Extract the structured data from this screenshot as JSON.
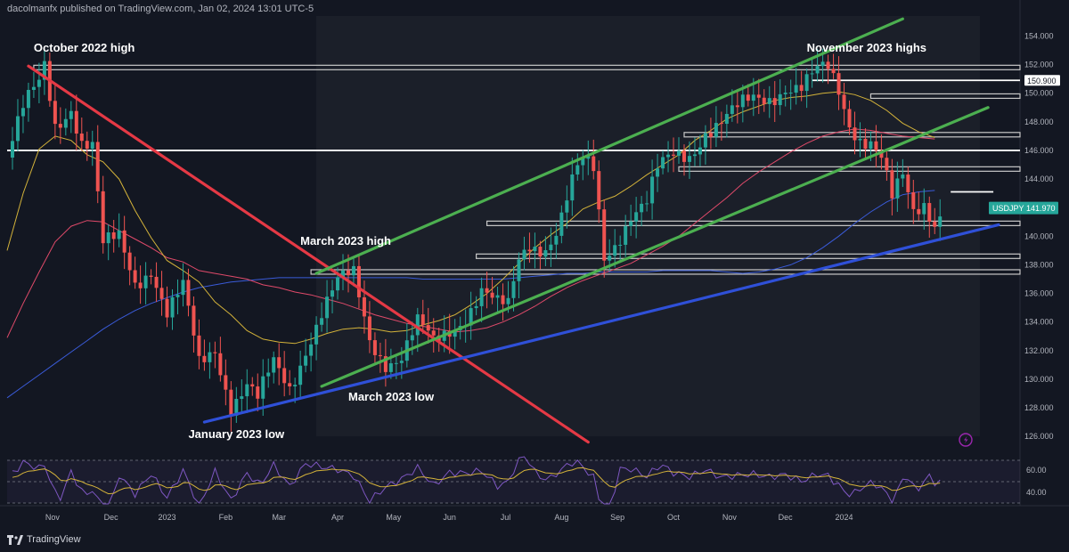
{
  "header": {
    "text": "dacolmanfx published on TradingView.com, Jan 02, 2024 13:01 UTC-5"
  },
  "brand": {
    "text": "TradingView",
    "icon": "tradingview-logo-icon"
  },
  "chart_data": {
    "type": "candlestick",
    "symbol": "USDJPY",
    "last_price": "141.970",
    "y_ticks": [
      "154.000",
      "152.000",
      "150.000",
      "148.000",
      "146.000",
      "144.000",
      "142.000",
      "140.000",
      "138.000",
      "136.000",
      "134.000",
      "132.000",
      "130.000",
      "128.000",
      "126.000"
    ],
    "ylim": [
      125.2,
      155.4
    ],
    "x_ticks": [
      "Nov",
      "Dec",
      "2023",
      "Feb",
      "Mar",
      "Apr",
      "May",
      "Jun",
      "Jul",
      "Aug",
      "Sep",
      "Oct",
      "Nov",
      "Dec",
      "2024"
    ],
    "rsi_ticks": [
      "60.00",
      "40.00"
    ],
    "price_labels": [
      {
        "text": "150.900",
        "value": 150.9
      }
    ],
    "price_path": [
      [
        0,
        145.5
      ],
      [
        3,
        148.6
      ],
      [
        6,
        150.6
      ],
      [
        7,
        151.9
      ],
      [
        9,
        148
      ],
      [
        12,
        149.3
      ],
      [
        14,
        146.6
      ],
      [
        16,
        146.1
      ],
      [
        18,
        139
      ],
      [
        21,
        139.8
      ],
      [
        24,
        137
      ],
      [
        27,
        138
      ],
      [
        30,
        134.5
      ],
      [
        33,
        136.1
      ],
      [
        36,
        131
      ],
      [
        39,
        132.4
      ],
      [
        42,
        128.4
      ],
      [
        45,
        129.5
      ],
      [
        47,
        128.3
      ],
      [
        50,
        130.9
      ],
      [
        53,
        129.5
      ],
      [
        56,
        132.4
      ],
      [
        59,
        134.7
      ],
      [
        62,
        136.5
      ],
      [
        65,
        137.1
      ],
      [
        68,
        133
      ],
      [
        71,
        131.5
      ],
      [
        74,
        131.5
      ],
      [
        77,
        133.6
      ],
      [
        80,
        132.4
      ],
      [
        83,
        133.6
      ],
      [
        86,
        134.7
      ],
      [
        89,
        136.2
      ],
      [
        92,
        134.9
      ],
      [
        94,
        134.8
      ],
      [
        96,
        138.3
      ],
      [
        98,
        139.7
      ],
      [
        100,
        139.5
      ],
      [
        102,
        139.8
      ],
      [
        104,
        141.3
      ],
      [
        106,
        143.6
      ],
      [
        108,
        144.9
      ],
      [
        110,
        144.5
      ],
      [
        112,
        138.6
      ],
      [
        114,
        139.8
      ],
      [
        117,
        141.7
      ],
      [
        120,
        142.2
      ],
      [
        122,
        144.3
      ],
      [
        125,
        145.5
      ],
      [
        128,
        145.9
      ],
      [
        131,
        147.6
      ],
      [
        134,
        147.9
      ],
      [
        137,
        148.6
      ],
      [
        140,
        149.5
      ],
      [
        143,
        149.9
      ],
      [
        146,
        150.7
      ],
      [
        149,
        150.3
      ],
      [
        152,
        151.2
      ],
      [
        154,
        151.5
      ],
      [
        156,
        150.2
      ],
      [
        158,
        148.1
      ],
      [
        160,
        147.2
      ],
      [
        162,
        146.8
      ],
      [
        164,
        145.4
      ],
      [
        166,
        142.3
      ],
      [
        168,
        143.8
      ],
      [
        170,
        141.5
      ],
      [
        172,
        142.4
      ],
      [
        174,
        141.3
      ],
      [
        175,
        141.97
      ]
    ],
    "ma_50": [
      [
        0,
        139
      ],
      [
        3,
        143
      ],
      [
        6,
        146.1
      ],
      [
        9,
        147
      ],
      [
        12,
        146.7
      ],
      [
        15,
        145.7
      ],
      [
        18,
        145.2
      ],
      [
        21,
        144
      ],
      [
        24,
        141.8
      ],
      [
        27,
        139.9
      ],
      [
        30,
        138.3
      ],
      [
        33,
        137.6
      ],
      [
        36,
        136.8
      ],
      [
        39,
        135.4
      ],
      [
        42,
        134.5
      ],
      [
        45,
        133.4
      ],
      [
        48,
        132.8
      ],
      [
        51,
        132.6
      ],
      [
        54,
        132.5
      ],
      [
        57,
        132.8
      ],
      [
        60,
        133.2
      ],
      [
        63,
        133.5
      ],
      [
        66,
        133.6
      ],
      [
        69,
        133.5
      ],
      [
        72,
        133.3
      ],
      [
        75,
        133.4
      ],
      [
        78,
        133.8
      ],
      [
        81,
        134.1
      ],
      [
        84,
        134.5
      ],
      [
        87,
        135.2
      ],
      [
        90,
        136
      ],
      [
        93,
        137
      ],
      [
        96,
        138.1
      ],
      [
        99,
        139.2
      ],
      [
        102,
        140.1
      ],
      [
        105,
        140.9
      ],
      [
        108,
        141.9
      ],
      [
        111,
        142.4
      ],
      [
        114,
        142.8
      ],
      [
        117,
        143.5
      ],
      [
        120,
        144.3
      ],
      [
        123,
        145
      ],
      [
        126,
        145.7
      ],
      [
        129,
        146.7
      ],
      [
        132,
        147.4
      ],
      [
        135,
        148.2
      ],
      [
        138,
        148.7
      ],
      [
        141,
        149.1
      ],
      [
        144,
        149.5
      ],
      [
        147,
        149.7
      ],
      [
        150,
        149.8
      ],
      [
        153,
        150
      ],
      [
        156,
        150.1
      ],
      [
        159,
        149.9
      ],
      [
        162,
        149.5
      ],
      [
        165,
        148.8
      ],
      [
        168,
        147.9
      ],
      [
        171,
        147.3
      ],
      [
        174,
        146.9
      ]
    ],
    "ma_100": [
      [
        0,
        132.9
      ],
      [
        3,
        135.3
      ],
      [
        6,
        137.5
      ],
      [
        9,
        139.6
      ],
      [
        12,
        140.7
      ],
      [
        15,
        141.1
      ],
      [
        18,
        141
      ],
      [
        21,
        140.4
      ],
      [
        24,
        139.8
      ],
      [
        27,
        139.2
      ],
      [
        30,
        138.5
      ],
      [
        33,
        138.2
      ],
      [
        36,
        137.6
      ],
      [
        39,
        137.4
      ],
      [
        42,
        137.2
      ],
      [
        45,
        137
      ],
      [
        48,
        136.6
      ],
      [
        51,
        136.4
      ],
      [
        54,
        136.1
      ],
      [
        57,
        135.9
      ],
      [
        60,
        135.6
      ],
      [
        63,
        135.3
      ],
      [
        66,
        134.9
      ],
      [
        69,
        134.5
      ],
      [
        72,
        134.2
      ],
      [
        75,
        133.9
      ],
      [
        78,
        133.7
      ],
      [
        81,
        133.5
      ],
      [
        84,
        133.3
      ],
      [
        87,
        133.4
      ],
      [
        90,
        133.6
      ],
      [
        93,
        134
      ],
      [
        96,
        134.5
      ],
      [
        99,
        135.1
      ],
      [
        102,
        135.8
      ],
      [
        105,
        136.4
      ],
      [
        108,
        136.9
      ],
      [
        111,
        137.3
      ],
      [
        114,
        137.7
      ],
      [
        117,
        138.1
      ],
      [
        120,
        138.7
      ],
      [
        123,
        139.3
      ],
      [
        126,
        140
      ],
      [
        129,
        140.9
      ],
      [
        132,
        141.8
      ],
      [
        135,
        142.7
      ],
      [
        138,
        143.7
      ],
      [
        141,
        144.5
      ],
      [
        144,
        145.2
      ],
      [
        147,
        145.9
      ],
      [
        150,
        146.5
      ],
      [
        153,
        147
      ],
      [
        156,
        147.3
      ],
      [
        159,
        147.5
      ],
      [
        162,
        147.4
      ],
      [
        165,
        147.2
      ],
      [
        168,
        147
      ],
      [
        171,
        146.9
      ],
      [
        174,
        146.8
      ]
    ],
    "ma_200": [
      [
        0,
        128.7
      ],
      [
        3,
        129.5
      ],
      [
        6,
        130.3
      ],
      [
        9,
        131.1
      ],
      [
        12,
        131.9
      ],
      [
        15,
        132.7
      ],
      [
        18,
        133.5
      ],
      [
        21,
        134.2
      ],
      [
        24,
        134.8
      ],
      [
        27,
        135.3
      ],
      [
        30,
        135.7
      ],
      [
        33,
        136.1
      ],
      [
        36,
        136.4
      ],
      [
        39,
        136.6
      ],
      [
        42,
        136.8
      ],
      [
        45,
        136.9
      ],
      [
        48,
        137
      ],
      [
        51,
        137.1
      ],
      [
        54,
        137.1
      ],
      [
        57,
        137.1
      ],
      [
        60,
        137.1
      ],
      [
        63,
        137.1
      ],
      [
        66,
        137.1
      ],
      [
        69,
        137.1
      ],
      [
        72,
        137.1
      ],
      [
        75,
        137.1
      ],
      [
        78,
        137
      ],
      [
        81,
        137
      ],
      [
        84,
        137
      ],
      [
        87,
        137
      ],
      [
        90,
        137
      ],
      [
        93,
        137
      ],
      [
        96,
        137.1
      ],
      [
        99,
        137.2
      ],
      [
        102,
        137.3
      ],
      [
        105,
        137.4
      ],
      [
        108,
        137.4
      ],
      [
        111,
        137.5
      ],
      [
        114,
        137.5
      ],
      [
        117,
        137.5
      ],
      [
        120,
        137.5
      ],
      [
        123,
        137.6
      ],
      [
        126,
        137.6
      ],
      [
        129,
        137.6
      ],
      [
        132,
        137.6
      ],
      [
        135,
        137.5
      ],
      [
        138,
        137.4
      ],
      [
        141,
        137.5
      ],
      [
        144,
        137.7
      ],
      [
        147,
        138
      ],
      [
        150,
        138.5
      ],
      [
        153,
        139.2
      ],
      [
        156,
        140
      ],
      [
        159,
        140.9
      ],
      [
        162,
        141.7
      ],
      [
        165,
        142.4
      ],
      [
        168,
        142.9
      ],
      [
        171,
        143.1
      ],
      [
        174,
        143.2
      ]
    ],
    "trendlines": [
      {
        "name": "descending",
        "color": "#e53945",
        "from": [
          4,
          151.9
        ],
        "to": [
          109,
          125.6
        ]
      },
      {
        "name": "ascending-support",
        "color": "#2f50d8",
        "from": [
          37,
          127
        ],
        "to": [
          186,
          140.8
        ]
      },
      {
        "name": "channel-upper",
        "color": "#4caf50",
        "from": [
          58,
          137.4
        ],
        "to": [
          168,
          155.2
        ]
      },
      {
        "name": "channel-lower",
        "color": "#4caf50",
        "from": [
          59,
          129.5
        ],
        "to": [
          184,
          149
        ]
      }
    ],
    "horizontal_lines": [
      {
        "y": 146.0,
        "from": 0,
        "to": 190,
        "style": "solid"
      },
      {
        "y": 150.9,
        "from": 151,
        "to": 190,
        "style": "solid"
      },
      {
        "y": 143.1,
        "from": 177,
        "to": 185,
        "style": "solid"
      },
      {
        "y": 151.8,
        "from": 5,
        "to": 190,
        "style": "band"
      },
      {
        "y": 149.8,
        "from": 162,
        "to": 190,
        "style": "band"
      },
      {
        "y": 147.1,
        "from": 127,
        "to": 190,
        "style": "band"
      },
      {
        "y": 144.7,
        "from": 126,
        "to": 190,
        "style": "band"
      },
      {
        "y": 140.9,
        "from": 90,
        "to": 190,
        "style": "band"
      },
      {
        "y": 138.6,
        "from": 88,
        "to": 190,
        "style": "band"
      },
      {
        "y": 137.5,
        "from": 57,
        "to": 190,
        "style": "band"
      }
    ],
    "annotations": [
      {
        "text": "October 2022 high",
        "x": 5,
        "y": 152.9
      },
      {
        "text": "November 2023 highs",
        "x": 150,
        "y": 152.9
      },
      {
        "text": "March 2023 high",
        "x": 55,
        "y": 139.4
      },
      {
        "text": "March 2023 low",
        "x": 64,
        "y": 128.5
      },
      {
        "text": "January 2023 low",
        "x": 34,
        "y": 125.9
      }
    ]
  },
  "colors": {
    "background": "#131722",
    "up": "#26a69a",
    "down": "#ef5350",
    "ma_50": "#d4b33a",
    "ma_100": "#e04a6a",
    "ma_200": "#3a5bd9",
    "rsi": "#7e57c2",
    "rsi_signal": "#d4b33a",
    "last_price": "#26a69a"
  }
}
